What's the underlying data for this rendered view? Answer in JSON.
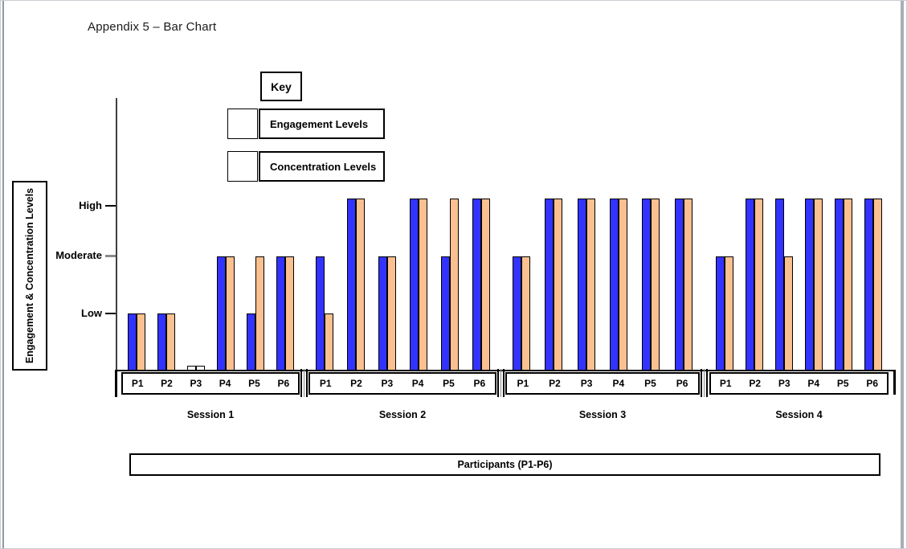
{
  "page": {
    "title": "Appendix 5 – Bar Chart"
  },
  "key": {
    "title": "Key",
    "items": [
      {
        "label": "Engagement Levels",
        "color": "#3333FF"
      },
      {
        "label": "Concentration Levels",
        "color": "#FAC090"
      }
    ]
  },
  "y_axis": {
    "title": "Engagement & Concentration Levels",
    "tick_labels": [
      "High",
      "Moderate",
      "Low"
    ]
  },
  "x_axis": {
    "title": "Participants (P1-P6)"
  },
  "chart_data": {
    "type": "bar",
    "title": "Appendix 5 – Bar Chart",
    "ylabel": "Engagement & Concentration Levels",
    "xlabel": "Participants (P1-P6)",
    "value_scale": {
      "none": 0,
      "low": 1,
      "moderate": 2,
      "high": 3
    },
    "series_names": [
      "Engagement Levels",
      "Concentration Levels"
    ],
    "series_colors": {
      "engagement": "#3333FF",
      "concentration": "#FAC090",
      "none_fill": "#FFFFFF"
    },
    "legend_position": "top-left",
    "grid": false,
    "sessions": [
      {
        "label": "Session 1",
        "participants": [
          "P1",
          "P2",
          "P3",
          "P4",
          "P5",
          "P6"
        ],
        "engagement": [
          "low",
          "low",
          "none",
          "moderate",
          "low",
          "moderate"
        ],
        "concentration": [
          "low",
          "low",
          "none",
          "moderate",
          "moderate",
          "moderate"
        ]
      },
      {
        "label": "Session 2",
        "participants": [
          "P1",
          "P2",
          "P3",
          "P4",
          "P5",
          "P6"
        ],
        "engagement": [
          "moderate",
          "high",
          "moderate",
          "high",
          "moderate",
          "high"
        ],
        "concentration": [
          "low",
          "high",
          "moderate",
          "high",
          "high",
          "high"
        ]
      },
      {
        "label": "Session 3",
        "participants": [
          "P1",
          "P2",
          "P3",
          "P4",
          "P5",
          "P6"
        ],
        "engagement": [
          "moderate",
          "high",
          "high",
          "high",
          "high",
          "high"
        ],
        "concentration": [
          "moderate",
          "high",
          "high",
          "high",
          "high",
          "high"
        ]
      },
      {
        "label": "Session 4",
        "participants": [
          "P1",
          "P2",
          "P3",
          "P4",
          "P5",
          "P6"
        ],
        "engagement": [
          "moderate",
          "high",
          "high",
          "high",
          "high",
          "high"
        ],
        "concentration": [
          "moderate",
          "high",
          "moderate",
          "high",
          "high",
          "high"
        ]
      }
    ]
  }
}
